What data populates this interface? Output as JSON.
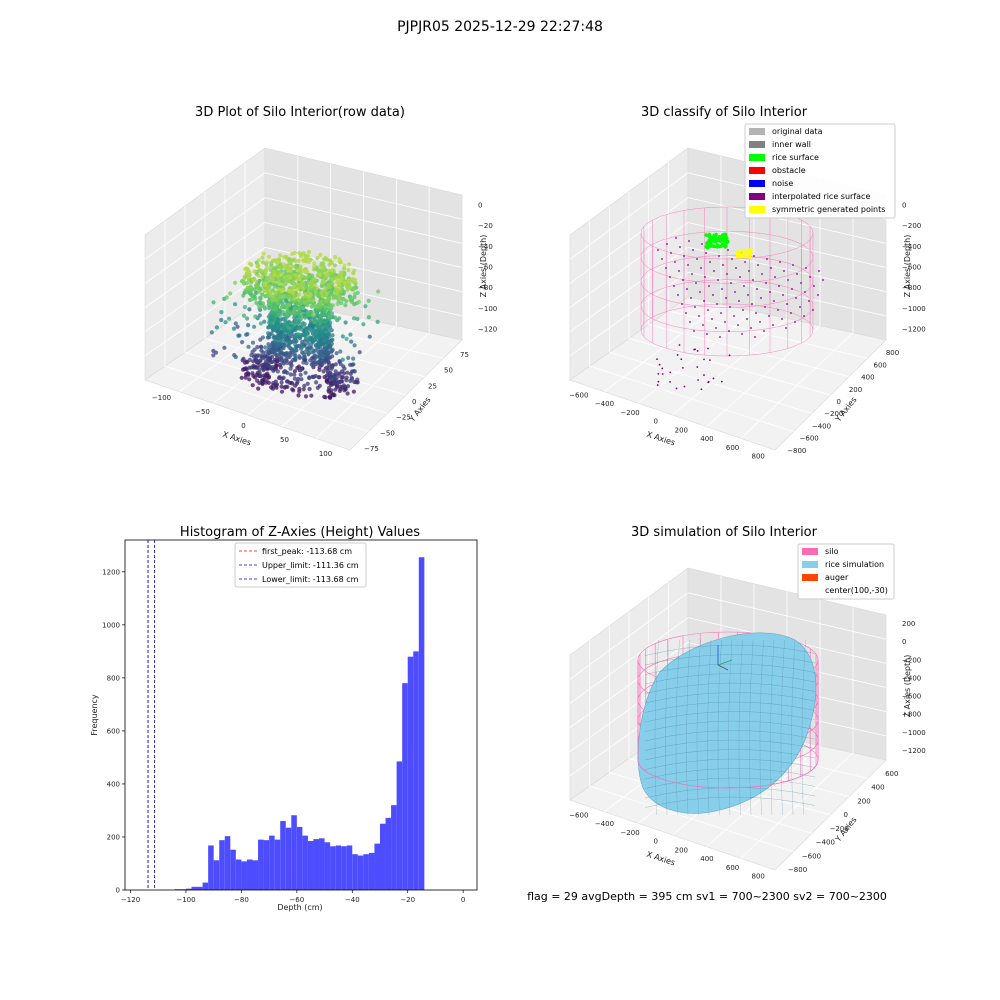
{
  "figure": {
    "suptitle": "PJPJR05 2025-12-29 22:27:48",
    "footer": "flag = 29  avgDepth = 395 cm  sv1 = 700~2300  sv2 = 700~2300"
  },
  "colors": {
    "histogram_bar": "#4d4dff",
    "first_peak_line": "#ff0000",
    "limit_line": "#0000cc",
    "original_data": "#b3b3b3",
    "inner_wall": "#808080",
    "rice_surface": "#00ff00",
    "obstacle": "#ff0000",
    "noise": "#0000ff",
    "interpolated_rice_surface": "#800080",
    "symmetric_generated_points": "#ffff00",
    "silo": "#ff69b4",
    "rice_simulation": "#87ceeb",
    "auger": "#ff4500",
    "viridis_low": "#440154",
    "viridis_mid": "#21918c",
    "viridis_high": "#fde725"
  },
  "chart_data": [
    {
      "type": "scatter",
      "projection": "3d",
      "title": "3D Plot of Silo Interior(row data)",
      "xlabel": "X Axies",
      "ylabel": "Y Axies",
      "zlabel": "Z Axies (Depth)",
      "x_ticks": [
        "−100",
        "−50",
        "0",
        "50",
        "100"
      ],
      "y_ticks": [
        "−75",
        "−50",
        "−25",
        "0",
        "25",
        "50",
        "75"
      ],
      "z_ticks": [
        "−120",
        "−100",
        "−80",
        "−60",
        "−40",
        "−20",
        "0"
      ],
      "xlim": [
        -110,
        110
      ],
      "ylim": [
        -90,
        90
      ],
      "zlim": [
        -125,
        5
      ],
      "colormap": "viridis",
      "grid": true
    },
    {
      "type": "scatter",
      "projection": "3d",
      "title": "3D classify of Silo Interior",
      "xlabel": "X Axies",
      "ylabel": "Y Axies",
      "zlabel": "Z Axies (Depth)",
      "x_ticks": [
        "−600",
        "−400",
        "−200",
        "0",
        "200",
        "400",
        "600",
        "800"
      ],
      "y_ticks": [
        "−800",
        "−600",
        "−400",
        "−200",
        "0",
        "200",
        "400",
        "600",
        "800"
      ],
      "z_ticks": [
        "−1200",
        "−1000",
        "−800",
        "−600",
        "−400",
        "−200",
        "0"
      ],
      "legend": [
        "original data",
        "inner wall",
        "rice surface",
        "obstacle",
        "noise",
        "interpolated rice surface",
        "symmetric generated points"
      ],
      "legend_placement": "top-right",
      "grid": true
    },
    {
      "type": "bar",
      "title": "Histogram of Z-Axies (Height) Values",
      "xlabel": "Depth (cm)",
      "ylabel": "Frequency",
      "xlim": [
        -122,
        5
      ],
      "ylim": [
        0,
        1320
      ],
      "x_ticks": [
        -120,
        -100,
        -80,
        -60,
        -40,
        -20,
        0
      ],
      "y_ticks": [
        0,
        200,
        400,
        600,
        800,
        1000,
        1200
      ],
      "bin_start": -104,
      "bin_width": 2,
      "values": [
        3,
        3,
        5,
        12,
        12,
        28,
        168,
        112,
        188,
        203,
        152,
        115,
        108,
        115,
        112,
        190,
        188,
        205,
        190,
        260,
        235,
        282,
        238,
        205,
        185,
        192,
        195,
        180,
        165,
        168,
        165,
        168,
        135,
        130,
        135,
        140,
        175,
        250,
        272,
        320,
        485,
        780,
        880,
        900,
        1255
      ],
      "vlines": [
        {
          "label": "first_peak: -113.68 cm",
          "x": -113.68
        },
        {
          "label": "Upper_limit: -111.36 cm",
          "x": -111.36
        },
        {
          "label": "Lower_limit: -113.68 cm",
          "x": -113.68
        }
      ],
      "legend_placement": "top-center"
    },
    {
      "type": "surface",
      "projection": "3d",
      "title": "3D simulation of Silo Interior",
      "xlabel": "X Axies",
      "ylabel": "Y Axies",
      "zlabel": "Z Axies (Depth)",
      "x_ticks": [
        "−600",
        "−400",
        "−200",
        "0",
        "200",
        "400",
        "600",
        "800"
      ],
      "y_ticks": [
        "−800",
        "−600",
        "−400",
        "−200",
        "0",
        "200",
        "400",
        "600"
      ],
      "z_ticks": [
        "−1200",
        "−1000",
        "−800",
        "−600",
        "−400",
        "−200",
        "0",
        "200"
      ],
      "legend": [
        "silo",
        "rice simulation",
        "auger",
        "center(100,-30)"
      ],
      "legend_placement": "top-right",
      "grid": true
    }
  ]
}
